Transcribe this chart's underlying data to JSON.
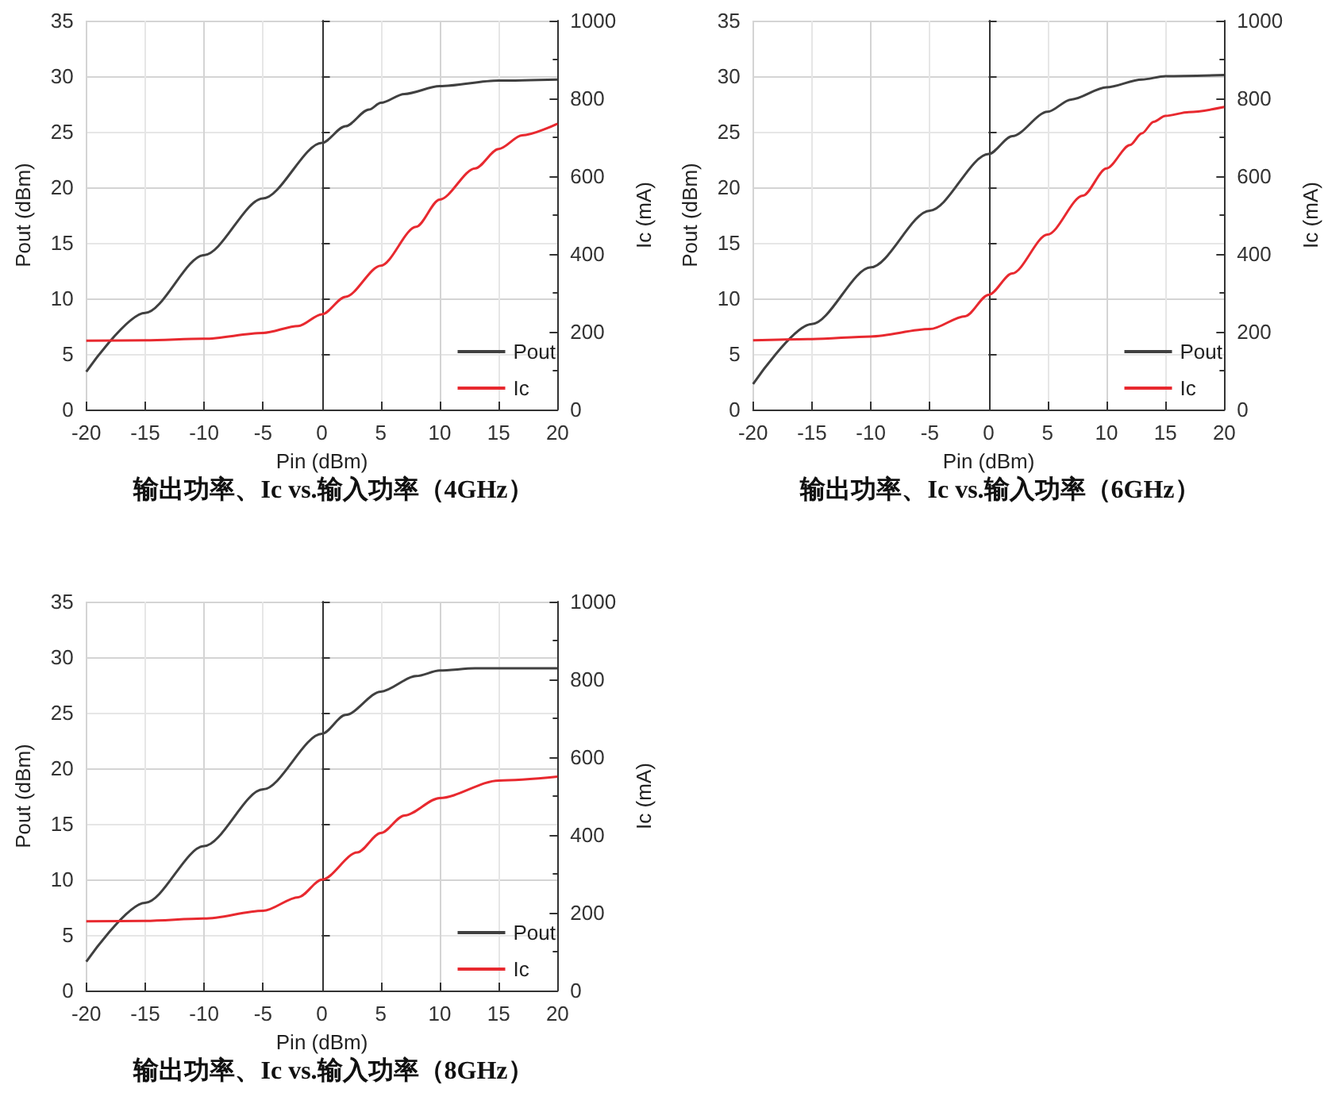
{
  "chart_data": [
    {
      "type": "line",
      "title": "输出功率、Ic vs.输入功率（4GHz）",
      "xlabel": "Pin (dBm)",
      "ylabel": "Pout (dBm)",
      "y2label": "Ic (mA)",
      "xlim": [
        -20,
        20
      ],
      "xticks": [
        -20,
        -15,
        -10,
        -5,
        0,
        5,
        10,
        15,
        20
      ],
      "ylim": [
        0,
        35
      ],
      "yticks": [
        0,
        5,
        10,
        15,
        20,
        25,
        30,
        35
      ],
      "y2lim": [
        0,
        1000
      ],
      "y2ticks": [
        0,
        200,
        400,
        600,
        800,
        1000
      ],
      "grid": true,
      "legend": "bottom right",
      "marker": "none",
      "line_style": "solid",
      "series": [
        {
          "name": "Pout",
          "color": "#404040",
          "x": [
            -20,
            -15,
            -10,
            -5,
            0,
            2,
            4,
            5,
            7,
            10,
            15,
            20
          ],
          "values": [
            3.4,
            8.7,
            13.9,
            19,
            24,
            25.5,
            27,
            27.6,
            28.4,
            29.1,
            29.6,
            29.7
          ]
        },
        {
          "name": "Ic",
          "color": "#e8292f",
          "axis": "y2",
          "x": [
            -20,
            -15,
            -10,
            -5,
            -2,
            0,
            2,
            5,
            8,
            10,
            13,
            15,
            17,
            20
          ],
          "values": [
            177,
            178,
            182,
            197,
            215,
            245,
            290,
            370,
            470,
            540,
            620,
            670,
            705,
            735
          ]
        }
      ]
    },
    {
      "type": "line",
      "title": "输出功率、Ic vs.输入功率（6GHz）",
      "xlabel": "Pin (dBm)",
      "ylabel": "Pout (dBm)",
      "y2label": "Ic (mA)",
      "xlim": [
        -20,
        20
      ],
      "xticks": [
        -20,
        -15,
        -10,
        -5,
        0,
        5,
        10,
        15,
        20
      ],
      "ylim": [
        0,
        35
      ],
      "yticks": [
        0,
        5,
        10,
        15,
        20,
        25,
        30,
        35
      ],
      "y2lim": [
        0,
        1000
      ],
      "y2ticks": [
        0,
        200,
        400,
        600,
        800,
        1000
      ],
      "grid": true,
      "legend": "bottom right",
      "marker": "none",
      "line_style": "solid",
      "series": [
        {
          "name": "Pout",
          "color": "#404040",
          "x": [
            -20,
            -15,
            -10,
            -5,
            0,
            2,
            5,
            7,
            10,
            13,
            15,
            20
          ],
          "values": [
            2.3,
            7.7,
            12.8,
            17.9,
            23,
            24.6,
            26.8,
            27.9,
            29,
            29.7,
            30,
            30.1
          ]
        },
        {
          "name": "Ic",
          "color": "#e8292f",
          "axis": "y2",
          "x": [
            -20,
            -15,
            -10,
            -5,
            -2,
            0,
            2,
            5,
            8,
            10,
            12,
            13,
            14,
            15,
            17,
            20
          ],
          "values": [
            178,
            181,
            188,
            207,
            240,
            295,
            350,
            450,
            550,
            620,
            680,
            710,
            740,
            755,
            765,
            778
          ]
        }
      ]
    },
    {
      "type": "line",
      "title": "输出功率、Ic vs.输入功率（8GHz）",
      "xlabel": "Pin (dBm)",
      "ylabel": "Pout (dBm)",
      "y2label": "Ic (mA)",
      "xlim": [
        -20,
        20
      ],
      "xticks": [
        -20,
        -15,
        -10,
        -5,
        0,
        5,
        10,
        15,
        20
      ],
      "ylim": [
        0,
        35
      ],
      "yticks": [
        0,
        5,
        10,
        15,
        20,
        25,
        30,
        35
      ],
      "y2lim": [
        0,
        1000
      ],
      "y2ticks": [
        0,
        200,
        400,
        600,
        800,
        1000
      ],
      "grid": true,
      "legend": "bottom right",
      "marker": "none",
      "line_style": "solid",
      "series": [
        {
          "name": "Pout",
          "color": "#404040",
          "x": [
            -20,
            -15,
            -10,
            -5,
            0,
            2,
            5,
            8,
            10,
            13,
            20
          ],
          "values": [
            2.6,
            7.9,
            13,
            18.1,
            23.1,
            24.8,
            26.9,
            28.3,
            28.8,
            29,
            29
          ]
        },
        {
          "name": "Ic",
          "color": "#e8292f",
          "axis": "y2",
          "x": [
            -20,
            -15,
            -10,
            -5,
            -2,
            0,
            3,
            5,
            7,
            10,
            15,
            20
          ],
          "values": [
            178,
            179,
            185,
            205,
            240,
            285,
            355,
            405,
            450,
            495,
            540,
            550
          ]
        }
      ]
    }
  ]
}
